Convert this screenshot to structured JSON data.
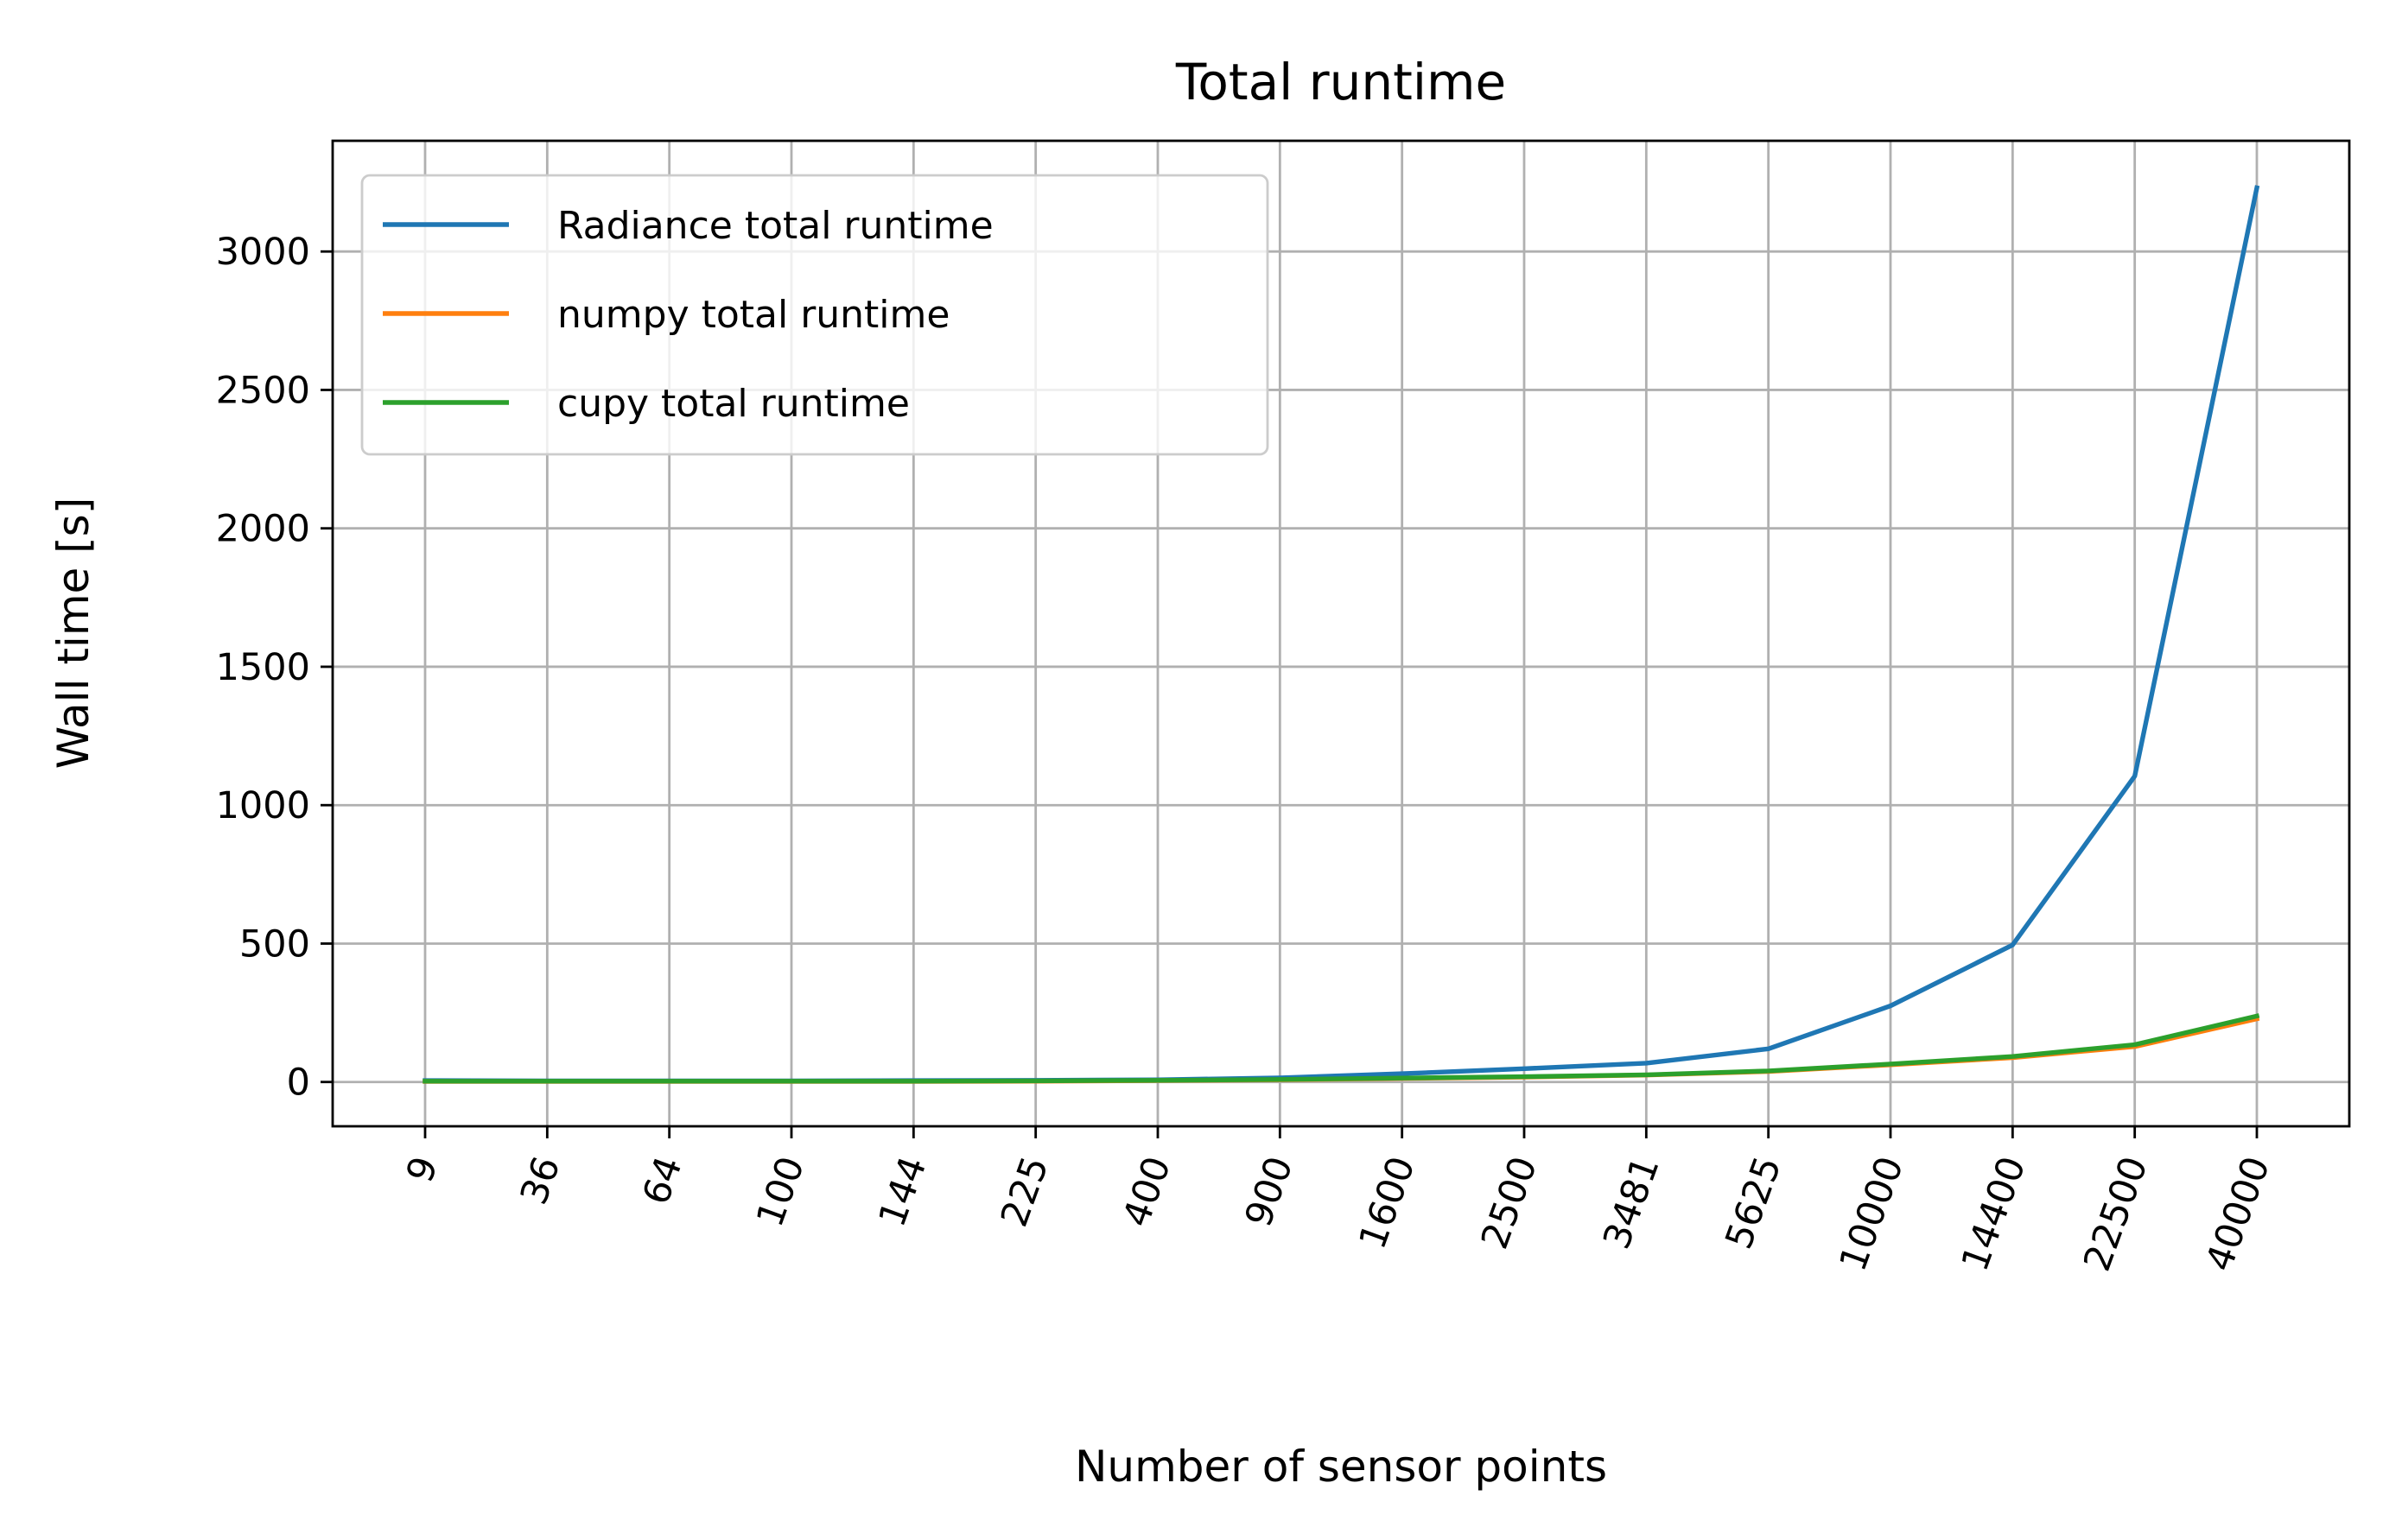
{
  "chart_data": {
    "type": "line",
    "title": "Total runtime",
    "xlabel": "Number of sensor points",
    "ylabel": "Wall time [s]",
    "categories": [
      "9",
      "36",
      "64",
      "100",
      "144",
      "225",
      "400",
      "900",
      "1600",
      "2500",
      "3481",
      "5625",
      "10000",
      "14400",
      "22500",
      "40000"
    ],
    "yticks": [
      0,
      500,
      1000,
      1500,
      2000,
      2500,
      3000
    ],
    "ylim": [
      -160,
      3400
    ],
    "grid": true,
    "legend_position": "top-left",
    "series": [
      {
        "name": "Radiance total runtime",
        "color": "#1f77b4",
        "values": [
          5,
          4,
          4,
          4,
          5,
          6,
          8,
          15,
          30,
          48,
          68,
          120,
          275,
          495,
          1105,
          3230
        ]
      },
      {
        "name": "numpy total runtime",
        "color": "#ff7f0e",
        "values": [
          2,
          2,
          2,
          2,
          2,
          3,
          5,
          8,
          13,
          18,
          25,
          38,
          62,
          88,
          128,
          228
        ]
      },
      {
        "name": "cupy total runtime",
        "color": "#2ca02c",
        "values": [
          3,
          3,
          3,
          3,
          3,
          4,
          6,
          9,
          14,
          19,
          26,
          40,
          65,
          92,
          135,
          238
        ]
      }
    ]
  }
}
